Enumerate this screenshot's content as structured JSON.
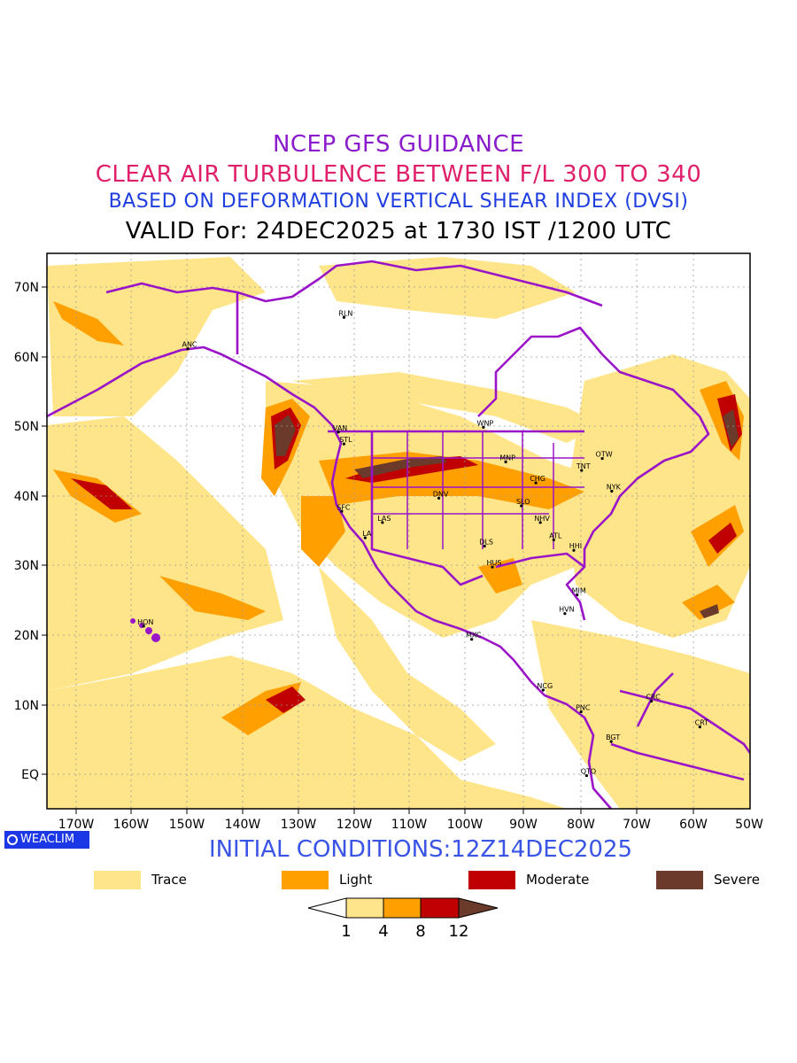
{
  "titles": {
    "line1": "NCEP GFS GUIDANCE",
    "line2": "CLEAR AIR TURBULENCE BETWEEN F/L 300 TO 340",
    "line3": "BASED ON DEFORMATION VERTICAL SHEAR INDEX (DVSI)",
    "line4": "VALID For: 24DEC2025 at 1730 IST /1200 UTC"
  },
  "colors": {
    "title1": "#8a1ccc",
    "title2": "#e0206a",
    "title3": "#1f3ee0",
    "title4": "#000000",
    "initial": "#3a55e6",
    "trace": "#ffe58a",
    "light": "#ff9f00",
    "moderate": "#c00000",
    "severe": "#6b3a2a",
    "coast": "#9a14c8",
    "grid": "#9a9a9a"
  },
  "axes": {
    "lon_labels": [
      "170W",
      "160W",
      "150W",
      "140W",
      "130W",
      "120W",
      "110W",
      "100W",
      "90W",
      "80W",
      "70W",
      "60W",
      "50W"
    ],
    "lat_labels": [
      "70N",
      "60N",
      "50N",
      "40N",
      "30N",
      "20N",
      "10N",
      "EQ"
    ]
  },
  "stations": [
    {
      "code": "RLN",
      "lon": -122,
      "lat": 65.7
    },
    {
      "code": "ANC",
      "lon": -150,
      "lat": 61.2
    },
    {
      "code": "VAN",
      "lon": -123,
      "lat": 49.2
    },
    {
      "code": "STL",
      "lon": -122,
      "lat": 47.5
    },
    {
      "code": "WNP",
      "lon": -97,
      "lat": 49.9
    },
    {
      "code": "MNP",
      "lon": -93,
      "lat": 44.9
    },
    {
      "code": "OTW",
      "lon": -75.7,
      "lat": 45.4
    },
    {
      "code": "TNT",
      "lon": -79.4,
      "lat": 43.7
    },
    {
      "code": "CHG",
      "lon": -87.6,
      "lat": 41.9
    },
    {
      "code": "NYK",
      "lon": -74,
      "lat": 40.7
    },
    {
      "code": "DNV",
      "lon": -105,
      "lat": 39.7
    },
    {
      "code": "SFC",
      "lon": -122.4,
      "lat": 37.8
    },
    {
      "code": "SLO",
      "lon": -90.2,
      "lat": 38.6
    },
    {
      "code": "LAS",
      "lon": -115.1,
      "lat": 36.2
    },
    {
      "code": "LA",
      "lon": -118.2,
      "lat": 34
    },
    {
      "code": "NHV",
      "lon": -86.8,
      "lat": 36.2
    },
    {
      "code": "DLS",
      "lon": -96.8,
      "lat": 32.8
    },
    {
      "code": "ATL",
      "lon": -84.4,
      "lat": 33.7
    },
    {
      "code": "HHI",
      "lon": -80.8,
      "lat": 32.2
    },
    {
      "code": "HUS",
      "lon": -95.4,
      "lat": 29.8
    },
    {
      "code": "MIM",
      "lon": -80.2,
      "lat": 25.8
    },
    {
      "code": "HVN",
      "lon": -82.4,
      "lat": 23.1
    },
    {
      "code": "HON",
      "lon": -157.9,
      "lat": 21.3
    },
    {
      "code": "MXC",
      "lon": -99.1,
      "lat": 19.4
    },
    {
      "code": "NCG",
      "lon": -86.3,
      "lat": 12.1
    },
    {
      "code": "PNC",
      "lon": -79.5,
      "lat": 8.98
    },
    {
      "code": "CRC",
      "lon": -66.9,
      "lat": 10.5
    },
    {
      "code": "CRT",
      "lon": -58.2,
      "lat": 6.8
    },
    {
      "code": "BGT",
      "lon": -74.1,
      "lat": 4.7
    },
    {
      "code": "QTO",
      "lon": -78.5,
      "lat": -0.2
    }
  ],
  "initial": "INITIAL CONDITIONS:12Z14DEC2025",
  "logo": "WEACLIM",
  "legend": [
    {
      "label": "Trace",
      "color": "#ffe58a"
    },
    {
      "label": "Light",
      "color": "#ff9f00"
    },
    {
      "label": "Moderate",
      "color": "#c00000"
    },
    {
      "label": "Severe",
      "color": "#6b3a2a"
    }
  ],
  "colorbar": {
    "ticks": [
      "1",
      "4",
      "8",
      "12"
    ]
  }
}
